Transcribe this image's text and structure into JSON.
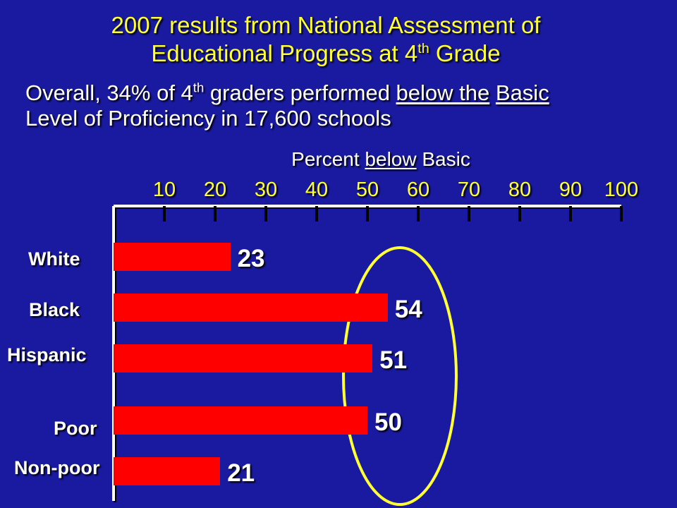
{
  "title": {
    "line1": "2007 results from National Assessment of",
    "line2_pre": "Educational Progress at 4",
    "line2_sup": "th",
    "line2_post": " Grade"
  },
  "subtitle": {
    "p1": "Overall, 34% of 4",
    "p1_sup": "th",
    "p2": " graders performed ",
    "u1": "below the",
    "p3": " ",
    "u2": "Basic",
    "line2": "Level of Proficiency in 17,600 schools"
  },
  "axis_title": {
    "pre": "Percent ",
    "underlined": "below",
    "post": " Basic"
  },
  "chart_data": {
    "type": "bar",
    "orientation": "horizontal",
    "categories": [
      "White",
      "Black",
      "Hispanic",
      "Poor",
      "Non-poor"
    ],
    "values": [
      23,
      54,
      51,
      50,
      21
    ],
    "value_labels": [
      "23",
      "54",
      "51",
      "50",
      "21"
    ],
    "xlim": [
      0,
      100
    ],
    "x_ticks": [
      10,
      20,
      30,
      40,
      50,
      60,
      70,
      80,
      90,
      100
    ],
    "x_tick_labels": [
      "10",
      "20",
      "30",
      "40",
      "50",
      "60",
      "70",
      "80",
      "90",
      "100"
    ],
    "axis_position": "top",
    "grid": false,
    "highlighted_categories": [
      "Black",
      "Hispanic",
      "Poor"
    ]
  },
  "colors": {
    "background": "#1a1aa0",
    "bar": "#ff0000",
    "title": "#ffff33",
    "highlight_ellipse": "#ffff33",
    "axis": "#ffffff"
  }
}
